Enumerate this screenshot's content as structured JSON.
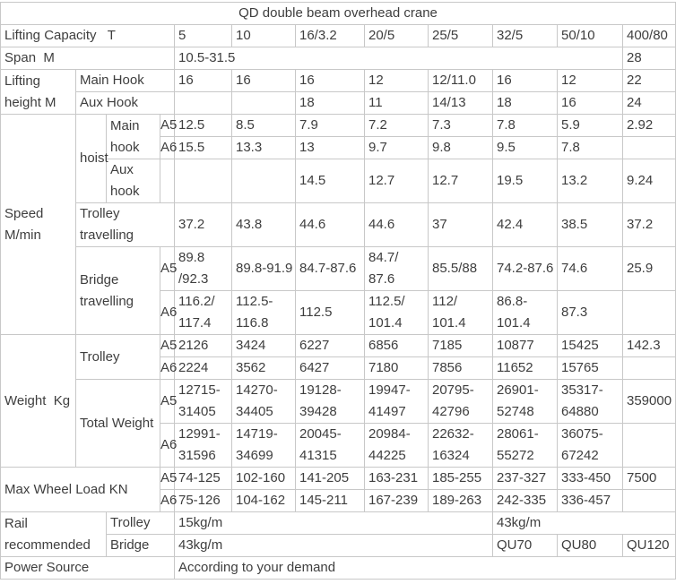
{
  "title": "QD double beam overhead crane",
  "table": {
    "rows": [
      {
        "cells": [
          {
            "t": "QD double beam overhead crane",
            "c": 12,
            "a": "center"
          }
        ]
      },
      {
        "cells": [
          {
            "t": "Lifting Capacity   T",
            "c": 4
          },
          {
            "t": "5"
          },
          {
            "t": "10"
          },
          {
            "t": "16/3.2"
          },
          {
            "t": "20/5"
          },
          {
            "t": "25/5"
          },
          {
            "t": "32/5"
          },
          {
            "t": "50/10"
          },
          {
            "t": "400/80"
          }
        ]
      },
      {
        "cells": [
          {
            "t": "Span  M",
            "c": 4
          },
          {
            "t": "10.5-31.5",
            "c": 7
          },
          {
            "t": "28"
          }
        ]
      },
      {
        "cells": [
          {
            "t": "Lifting height M",
            "r": 2
          },
          {
            "t": "Main Hook",
            "c": 3
          },
          {
            "t": "16"
          },
          {
            "t": "16"
          },
          {
            "t": "16"
          },
          {
            "t": "12"
          },
          {
            "t": "12/11.0"
          },
          {
            "t": "16"
          },
          {
            "t": "12"
          },
          {
            "t": "22"
          }
        ]
      },
      {
        "cells": [
          {
            "t": "Aux Hook",
            "c": 3
          },
          {
            "t": ""
          },
          {
            "t": ""
          },
          {
            "t": "18"
          },
          {
            "t": "11"
          },
          {
            "t": "14/13"
          },
          {
            "t": "18"
          },
          {
            "t": "16"
          },
          {
            "t": "24"
          }
        ]
      },
      {
        "cells": [
          {
            "t": "Speed M/min",
            "r": 6
          },
          {
            "t": "hoist",
            "r": 3
          },
          {
            "t": "Main hook",
            "r": 2
          },
          {
            "t": "A5"
          },
          {
            "t": "12.5"
          },
          {
            "t": "8.5"
          },
          {
            "t": "7.9"
          },
          {
            "t": "7.2"
          },
          {
            "t": "7.3"
          },
          {
            "t": "7.8"
          },
          {
            "t": "5.9"
          },
          {
            "t": "2.92"
          }
        ]
      },
      {
        "cells": [
          {
            "t": "A6"
          },
          {
            "t": "15.5"
          },
          {
            "t": "13.3"
          },
          {
            "t": "13"
          },
          {
            "t": "9.7"
          },
          {
            "t": "9.8"
          },
          {
            "t": "9.5"
          },
          {
            "t": "7.8"
          },
          {
            "t": ""
          }
        ]
      },
      {
        "cells": [
          {
            "t": "Aux hook"
          },
          {
            "t": ""
          },
          {
            "t": ""
          },
          {
            "t": ""
          },
          {
            "t": "14.5"
          },
          {
            "t": "12.7"
          },
          {
            "t": "12.7"
          },
          {
            "t": "19.5"
          },
          {
            "t": "13.2"
          },
          {
            "t": "9.24"
          }
        ]
      },
      {
        "cells": [
          {
            "t": "Trolley travelling",
            "c": 3
          },
          {
            "t": "37.2"
          },
          {
            "t": "43.8"
          },
          {
            "t": "44.6"
          },
          {
            "t": "44.6"
          },
          {
            "t": "37"
          },
          {
            "t": "42.4"
          },
          {
            "t": "38.5"
          },
          {
            "t": "37.2"
          }
        ]
      },
      {
        "cells": [
          {
            "t": "Bridge travelling",
            "c": 2,
            "r": 2
          },
          {
            "t": "A5"
          },
          {
            "t": "89.8\n/92.3"
          },
          {
            "t": "89.8-91.9"
          },
          {
            "t": "84.7-87.6"
          },
          {
            "t": "84.7/\n87.6"
          },
          {
            "t": "85.5/88"
          },
          {
            "t": "74.2-87.6"
          },
          {
            "t": "74.6"
          },
          {
            "t": "25.9"
          }
        ]
      },
      {
        "cells": [
          {
            "t": "A6"
          },
          {
            "t": "116.2/\n117.4"
          },
          {
            "t": "112.5-\n116.8"
          },
          {
            "t": "112.5"
          },
          {
            "t": "112.5/\n101.4"
          },
          {
            "t": "112/\n101.4"
          },
          {
            "t": "86.8-\n101.4"
          },
          {
            "t": "87.3"
          },
          {
            "t": ""
          }
        ]
      },
      {
        "cells": [
          {
            "t": "Weight  Kg",
            "r": 4
          },
          {
            "t": "Trolley",
            "c": 2,
            "r": 2
          },
          {
            "t": "A5"
          },
          {
            "t": "2126"
          },
          {
            "t": "3424"
          },
          {
            "t": "6227"
          },
          {
            "t": "6856"
          },
          {
            "t": "7185"
          },
          {
            "t": "10877"
          },
          {
            "t": "15425"
          },
          {
            "t": "142.3"
          }
        ]
      },
      {
        "cells": [
          {
            "t": "A6"
          },
          {
            "t": "2224"
          },
          {
            "t": "3562"
          },
          {
            "t": "6427"
          },
          {
            "t": "7180"
          },
          {
            "t": "7856"
          },
          {
            "t": "11652"
          },
          {
            "t": "15765"
          },
          {
            "t": ""
          }
        ]
      },
      {
        "cells": [
          {
            "t": "Total Weight",
            "c": 2,
            "r": 2
          },
          {
            "t": "A5"
          },
          {
            "t": "12715-\n31405"
          },
          {
            "t": "14270-\n34405"
          },
          {
            "t": "19128-\n39428"
          },
          {
            "t": "19947-\n41497"
          },
          {
            "t": "20795-\n42796"
          },
          {
            "t": "26901-\n52748"
          },
          {
            "t": "35317-\n64880"
          },
          {
            "t": "359000"
          }
        ]
      },
      {
        "cells": [
          {
            "t": "A6"
          },
          {
            "t": "12991-\n31596"
          },
          {
            "t": "14719-\n34699"
          },
          {
            "t": "20045-\n41315"
          },
          {
            "t": "20984-\n44225"
          },
          {
            "t": "22632-\n16324"
          },
          {
            "t": "28061-\n55272"
          },
          {
            "t": "36075-\n67242"
          },
          {
            "t": ""
          }
        ]
      },
      {
        "cells": [
          {
            "t": "Max Wheel Load KN",
            "c": 3,
            "r": 2
          },
          {
            "t": "A5"
          },
          {
            "t": "74-125"
          },
          {
            "t": "102-160"
          },
          {
            "t": "141-205"
          },
          {
            "t": "163-231"
          },
          {
            "t": "185-255"
          },
          {
            "t": "237-327"
          },
          {
            "t": "333-450"
          },
          {
            "t": "7500"
          }
        ]
      },
      {
        "cells": [
          {
            "t": "A6"
          },
          {
            "t": "75-126"
          },
          {
            "t": "104-162"
          },
          {
            "t": "145-211"
          },
          {
            "t": "167-239"
          },
          {
            "t": "189-263"
          },
          {
            "t": "242-335"
          },
          {
            "t": "336-457"
          },
          {
            "t": ""
          }
        ]
      },
      {
        "cells": [
          {
            "t": "Rail recommended",
            "c": 2,
            "r": 2
          },
          {
            "t": "Trolley",
            "c": 2
          },
          {
            "t": "15kg/m",
            "c": 5
          },
          {
            "t": "43kg/m",
            "c": 3
          }
        ]
      },
      {
        "cells": [
          {
            "t": "Bridge",
            "c": 2
          },
          {
            "t": "43kg/m",
            "c": 5
          },
          {
            "t": "QU70"
          },
          {
            "t": "QU80"
          },
          {
            "t": "QU120"
          }
        ]
      },
      {
        "cells": [
          {
            "t": "Power Source",
            "c": 4
          },
          {
            "t": "According to your demand",
            "c": 8
          }
        ]
      }
    ]
  }
}
